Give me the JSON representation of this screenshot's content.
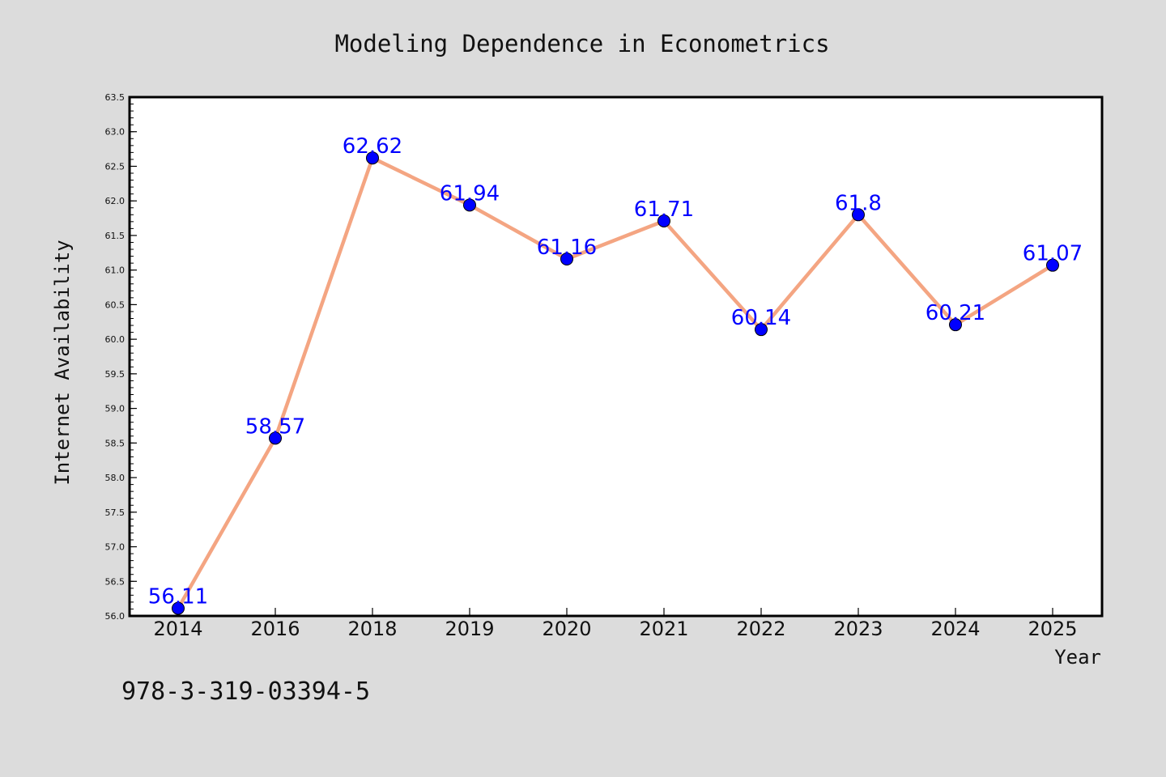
{
  "chart_data": {
    "type": "line",
    "title": "Modeling Dependence in Econometrics",
    "xlabel": "Year",
    "ylabel": "Internet Availability",
    "categories": [
      "2014",
      "2016",
      "2018",
      "2019",
      "2020",
      "2021",
      "2022",
      "2023",
      "2024",
      "2025"
    ],
    "series": [
      {
        "values": [
          56.11,
          58.57,
          62.62,
          61.94,
          61.16,
          61.71,
          60.14,
          61.8,
          60.21,
          61.07
        ],
        "labels": [
          "56.11",
          "58.57",
          "62.62",
          "61.94",
          "61.16",
          "61.71",
          "60.14",
          "61.8",
          "60.21",
          "61.07"
        ]
      }
    ],
    "ylim": [
      56.0,
      63.5
    ],
    "yticks": [
      "56.0",
      "56.5",
      "57.0",
      "57.5",
      "58.0",
      "58.5",
      "59.0",
      "59.5",
      "60.0",
      "60.5",
      "61.0",
      "61.5",
      "62.0",
      "62.5",
      "63.0",
      "63.5"
    ],
    "grid": false,
    "colors": {
      "line": "#f4a582",
      "marker": "#0000ff",
      "label": "#0000ff",
      "background": "#dcdcdc",
      "plot_background": "#ffffff"
    }
  },
  "footer_text": "978-3-319-03394-5"
}
